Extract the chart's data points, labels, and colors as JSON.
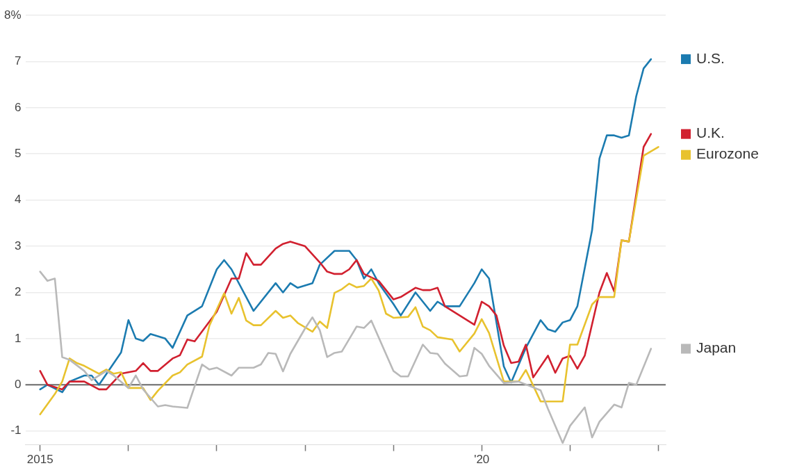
{
  "chart_data": {
    "type": "line",
    "xlim": [
      "2014-11",
      "2022-02"
    ],
    "xticks": [
      {
        "value": "2015",
        "label": "2015"
      },
      {
        "value": "2016",
        "label": null
      },
      {
        "value": "2017",
        "label": null
      },
      {
        "value": "2018",
        "label": null
      },
      {
        "value": "2019",
        "label": null
      },
      {
        "value": "2020",
        "label": "'20"
      },
      {
        "value": "2021",
        "label": null
      },
      {
        "value": "2022",
        "label": null
      }
    ],
    "ylim": [
      -1.3,
      8
    ],
    "yticks": [
      -1,
      0,
      1,
      2,
      3,
      4,
      5,
      6,
      7,
      {
        "value": 8,
        "label": "8%"
      }
    ],
    "grid": "y",
    "legend": "right",
    "marker": "none",
    "line_style": "solid",
    "ref_lines": [
      {
        "axis": "y",
        "value": 0,
        "color": "#6b6b6b"
      }
    ],
    "series": [
      {
        "name": "Japan",
        "color": "#b9b9b9",
        "x": [
          "2015-01",
          "2015-02",
          "2015-03",
          "2015-04",
          "2015-05",
          "2015-07",
          "2015-08",
          "2015-10",
          "2015-11",
          "2016-01",
          "2016-02",
          "2016-03",
          "2016-05",
          "2016-06",
          "2016-07",
          "2016-09",
          "2016-11",
          "2016-12",
          "2017-01",
          "2017-03",
          "2017-04",
          "2017-06",
          "2017-07",
          "2017-08",
          "2017-09",
          "2017-10",
          "2017-11",
          "2018-01",
          "2018-02",
          "2018-03",
          "2018-04",
          "2018-05",
          "2018-06",
          "2018-08",
          "2018-09",
          "2018-10",
          "2019-01",
          "2019-02",
          "2019-03",
          "2019-05",
          "2019-06",
          "2019-07",
          "2019-08",
          "2019-10",
          "2019-11",
          "2019-12",
          "2020-01",
          "2020-02",
          "2020-04",
          "2020-06",
          "2020-09",
          "2020-10",
          "2020-12",
          "2021-01",
          "2021-03",
          "2021-04",
          "2021-05",
          "2021-07",
          "2021-08",
          "2021-09",
          "2021-10",
          "2021-12"
        ],
        "values": [
          2.45,
          2.25,
          2.3,
          0.6,
          0.54,
          0.3,
          0.1,
          0.3,
          0.2,
          -0.07,
          0.2,
          -0.1,
          -0.47,
          -0.44,
          -0.47,
          -0.5,
          0.44,
          0.33,
          0.37,
          0.2,
          0.37,
          0.37,
          0.44,
          0.69,
          0.67,
          0.29,
          0.67,
          1.22,
          1.46,
          1.18,
          0.6,
          0.69,
          0.72,
          1.26,
          1.23,
          1.39,
          0.3,
          0.18,
          0.18,
          0.87,
          0.69,
          0.67,
          0.46,
          0.18,
          0.2,
          0.8,
          0.67,
          0.41,
          0.04,
          0.07,
          -0.12,
          -0.52,
          -1.26,
          -0.89,
          -0.49,
          -1.14,
          -0.8,
          -0.43,
          -0.49,
          0.04,
          0,
          0.78
        ]
      },
      {
        "name": "Eurozone",
        "color": "#e8c22e",
        "x": [
          "2015-01",
          "2015-03",
          "2015-04",
          "2015-05",
          "2015-06",
          "2015-07",
          "2015-09",
          "2015-10",
          "2015-11",
          "2015-12",
          "2016-01",
          "2016-03",
          "2016-04",
          "2016-05",
          "2016-07",
          "2016-08",
          "2016-09",
          "2016-11",
          "2016-12",
          "2017-02",
          "2017-03",
          "2017-04",
          "2017-05",
          "2017-06",
          "2017-07",
          "2017-09",
          "2017-10",
          "2017-11",
          "2017-12",
          "2018-02",
          "2018-03",
          "2018-04",
          "2018-05",
          "2018-06",
          "2018-07",
          "2018-08",
          "2018-09",
          "2018-10",
          "2018-11",
          "2018-12",
          "2019-01",
          "2019-03",
          "2019-04",
          "2019-05",
          "2019-06",
          "2019-07",
          "2019-09",
          "2019-10",
          "2019-12",
          "2020-01",
          "2020-02",
          "2020-04",
          "2020-06",
          "2020-07",
          "2020-09",
          "2020-10",
          "2020-12",
          "2021-01",
          "2021-02",
          "2021-04",
          "2021-05",
          "2021-07",
          "2021-08",
          "2021-09",
          "2021-11",
          "2022-01"
        ],
        "values": [
          -0.64,
          -0.2,
          0.07,
          0.57,
          0.47,
          0.41,
          0.24,
          0.33,
          0.24,
          0.27,
          -0.07,
          -0.07,
          -0.33,
          -0.13,
          0.2,
          0.27,
          0.44,
          0.61,
          1.28,
          1.98,
          1.54,
          1.88,
          1.39,
          1.29,
          1.29,
          1.6,
          1.45,
          1.5,
          1.34,
          1.15,
          1.37,
          1.23,
          1.99,
          2.07,
          2.19,
          2.11,
          2.14,
          2.3,
          2.04,
          1.54,
          1.45,
          1.47,
          1.68,
          1.26,
          1.18,
          1.03,
          0.98,
          0.72,
          1.11,
          1.42,
          1.12,
          0.07,
          0.07,
          0.32,
          -0.36,
          -0.36,
          -0.36,
          0.87,
          0.87,
          1.74,
          1.9,
          1.9,
          3.13,
          3.1,
          4.96,
          5.15
        ]
      },
      {
        "name": "U.K.",
        "color": "#d1202f",
        "x": [
          "2015-01",
          "2015-02",
          "2015-04",
          "2015-05",
          "2015-07",
          "2015-09",
          "2015-10",
          "2015-12",
          "2016-02",
          "2016-03",
          "2016-04",
          "2016-05",
          "2016-07",
          "2016-08",
          "2016-09",
          "2016-10",
          "2017-01",
          "2017-03",
          "2017-04",
          "2017-05",
          "2017-06",
          "2017-07",
          "2017-09",
          "2017-10",
          "2017-11",
          "2017-12",
          "2018-01",
          "2018-03",
          "2018-04",
          "2018-05",
          "2018-06",
          "2018-07",
          "2018-08",
          "2018-09",
          "2018-11",
          "2019-01",
          "2019-02",
          "2019-04",
          "2019-05",
          "2019-06",
          "2019-07",
          "2019-08",
          "2019-10",
          "2019-12",
          "2020-01",
          "2020-02",
          "2020-03",
          "2020-04",
          "2020-05",
          "2020-06",
          "2020-07",
          "2020-08",
          "2020-10",
          "2020-11",
          "2020-12",
          "2021-01",
          "2021-02",
          "2021-03",
          "2021-05",
          "2021-06",
          "2021-07",
          "2021-08",
          "2021-09",
          "2021-11",
          "2021-12"
        ],
        "values": [
          0.3,
          0,
          -0.1,
          0.07,
          0.07,
          -0.1,
          -0.1,
          0.24,
          0.3,
          0.47,
          0.3,
          0.3,
          0.57,
          0.64,
          0.98,
          0.94,
          1.58,
          2.3,
          2.3,
          2.85,
          2.6,
          2.6,
          2.95,
          3.05,
          3.1,
          3.05,
          3.0,
          2.65,
          2.45,
          2.4,
          2.4,
          2.5,
          2.7,
          2.4,
          2.25,
          1.85,
          1.9,
          2.1,
          2.05,
          2.05,
          2.1,
          1.7,
          1.5,
          1.3,
          1.8,
          1.7,
          1.5,
          0.85,
          0.47,
          0.5,
          0.87,
          0.16,
          0.63,
          0.26,
          0.57,
          0.63,
          0.35,
          0.63,
          2.0,
          2.42,
          2.02,
          3.13,
          3.1,
          5.15,
          5.43
        ]
      },
      {
        "name": "U.S.",
        "color": "#1b7bb0",
        "x": [
          "2015-01",
          "2015-02",
          "2015-04",
          "2015-05",
          "2015-07",
          "2015-08",
          "2015-09",
          "2015-12",
          "2016-01",
          "2016-02",
          "2016-03",
          "2016-04",
          "2016-06",
          "2016-07",
          "2016-09",
          "2016-11",
          "2017-01",
          "2017-02",
          "2017-03",
          "2017-06",
          "2017-09",
          "2017-10",
          "2017-11",
          "2017-12",
          "2018-02",
          "2018-03",
          "2018-05",
          "2018-07",
          "2018-08",
          "2018-09",
          "2018-10",
          "2018-11",
          "2019-01",
          "2019-02",
          "2019-04",
          "2019-06",
          "2019-07",
          "2019-08",
          "2019-10",
          "2019-12",
          "2020-01",
          "2020-02",
          "2020-04",
          "2020-05",
          "2020-07",
          "2020-09",
          "2020-10",
          "2020-11",
          "2020-12",
          "2021-01",
          "2021-02",
          "2021-04",
          "2021-05",
          "2021-06",
          "2021-07",
          "2021-08",
          "2021-09",
          "2021-10",
          "2021-11",
          "2021-12"
        ],
        "values": [
          -0.1,
          0,
          -0.16,
          0.07,
          0.2,
          0.2,
          0,
          0.7,
          1.4,
          1.0,
          0.95,
          1.1,
          1.0,
          0.8,
          1.5,
          1.7,
          2.5,
          2.7,
          2.5,
          1.6,
          2.2,
          2.0,
          2.2,
          2.1,
          2.2,
          2.6,
          2.9,
          2.9,
          2.7,
          2.3,
          2.5,
          2.2,
          1.75,
          1.5,
          2.0,
          1.6,
          1.8,
          1.7,
          1.7,
          2.2,
          2.5,
          2.3,
          0.4,
          0.05,
          0.8,
          1.4,
          1.2,
          1.15,
          1.35,
          1.4,
          1.7,
          3.35,
          4.9,
          5.4,
          5.4,
          5.35,
          5.4,
          6.25,
          6.85,
          7.05
        ]
      }
    ]
  }
}
